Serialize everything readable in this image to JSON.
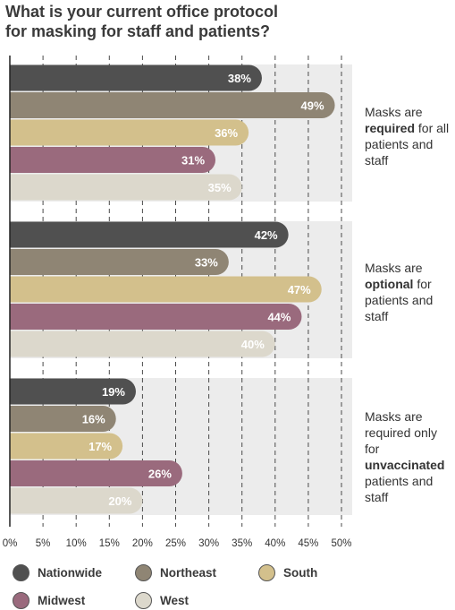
{
  "title": {
    "line1": "What is your current office protocol",
    "line2": "for masking for staff and patients?"
  },
  "colors": {
    "Nationwide": "#505050",
    "Northeast": "#8f8574",
    "South": "#d3c08c",
    "Midwest": "#9a6a7d",
    "West": "#dcd8cc",
    "band": "#ececec"
  },
  "groups": [
    {
      "pre": "Masks are ",
      "bold": "required",
      "post": " for all patients and staff"
    },
    {
      "pre": "Masks are ",
      "bold": "optional",
      "post": " for patients and staff"
    },
    {
      "pre": "Masks are required only for ",
      "bold": "unvaccinated",
      "post": " patients and staff"
    }
  ],
  "legend": [
    {
      "name": "Nationwide",
      "color": "#505050"
    },
    {
      "name": "Northeast",
      "color": "#8f8574"
    },
    {
      "name": "South",
      "color": "#d3c08c"
    },
    {
      "name": "Midwest",
      "color": "#9a6a7d"
    },
    {
      "name": "West",
      "color": "#dcd8cc"
    }
  ],
  "chart_data": {
    "type": "bar",
    "orientation": "horizontal",
    "title": "What is your current office protocol for masking for staff and patients?",
    "categories": [
      "Masks are required for all patients and staff",
      "Masks are optional for patients and staff",
      "Masks are required only for unvaccinated patients and staff"
    ],
    "series": [
      {
        "name": "Nationwide",
        "values": [
          38,
          42,
          19
        ]
      },
      {
        "name": "Northeast",
        "values": [
          49,
          33,
          16
        ]
      },
      {
        "name": "South",
        "values": [
          36,
          47,
          17
        ]
      },
      {
        "name": "Midwest",
        "values": [
          31,
          44,
          26
        ]
      },
      {
        "name": "West",
        "values": [
          35,
          40,
          20
        ]
      }
    ],
    "xlim": [
      0,
      50
    ],
    "xticks": [
      "0%",
      "5%",
      "10%",
      "15%",
      "20%",
      "25%",
      "30%",
      "35%",
      "40%",
      "45%",
      "50%"
    ],
    "data_label_suffix": "%",
    "grid": "vertical dashed",
    "legend_position": "bottom"
  }
}
